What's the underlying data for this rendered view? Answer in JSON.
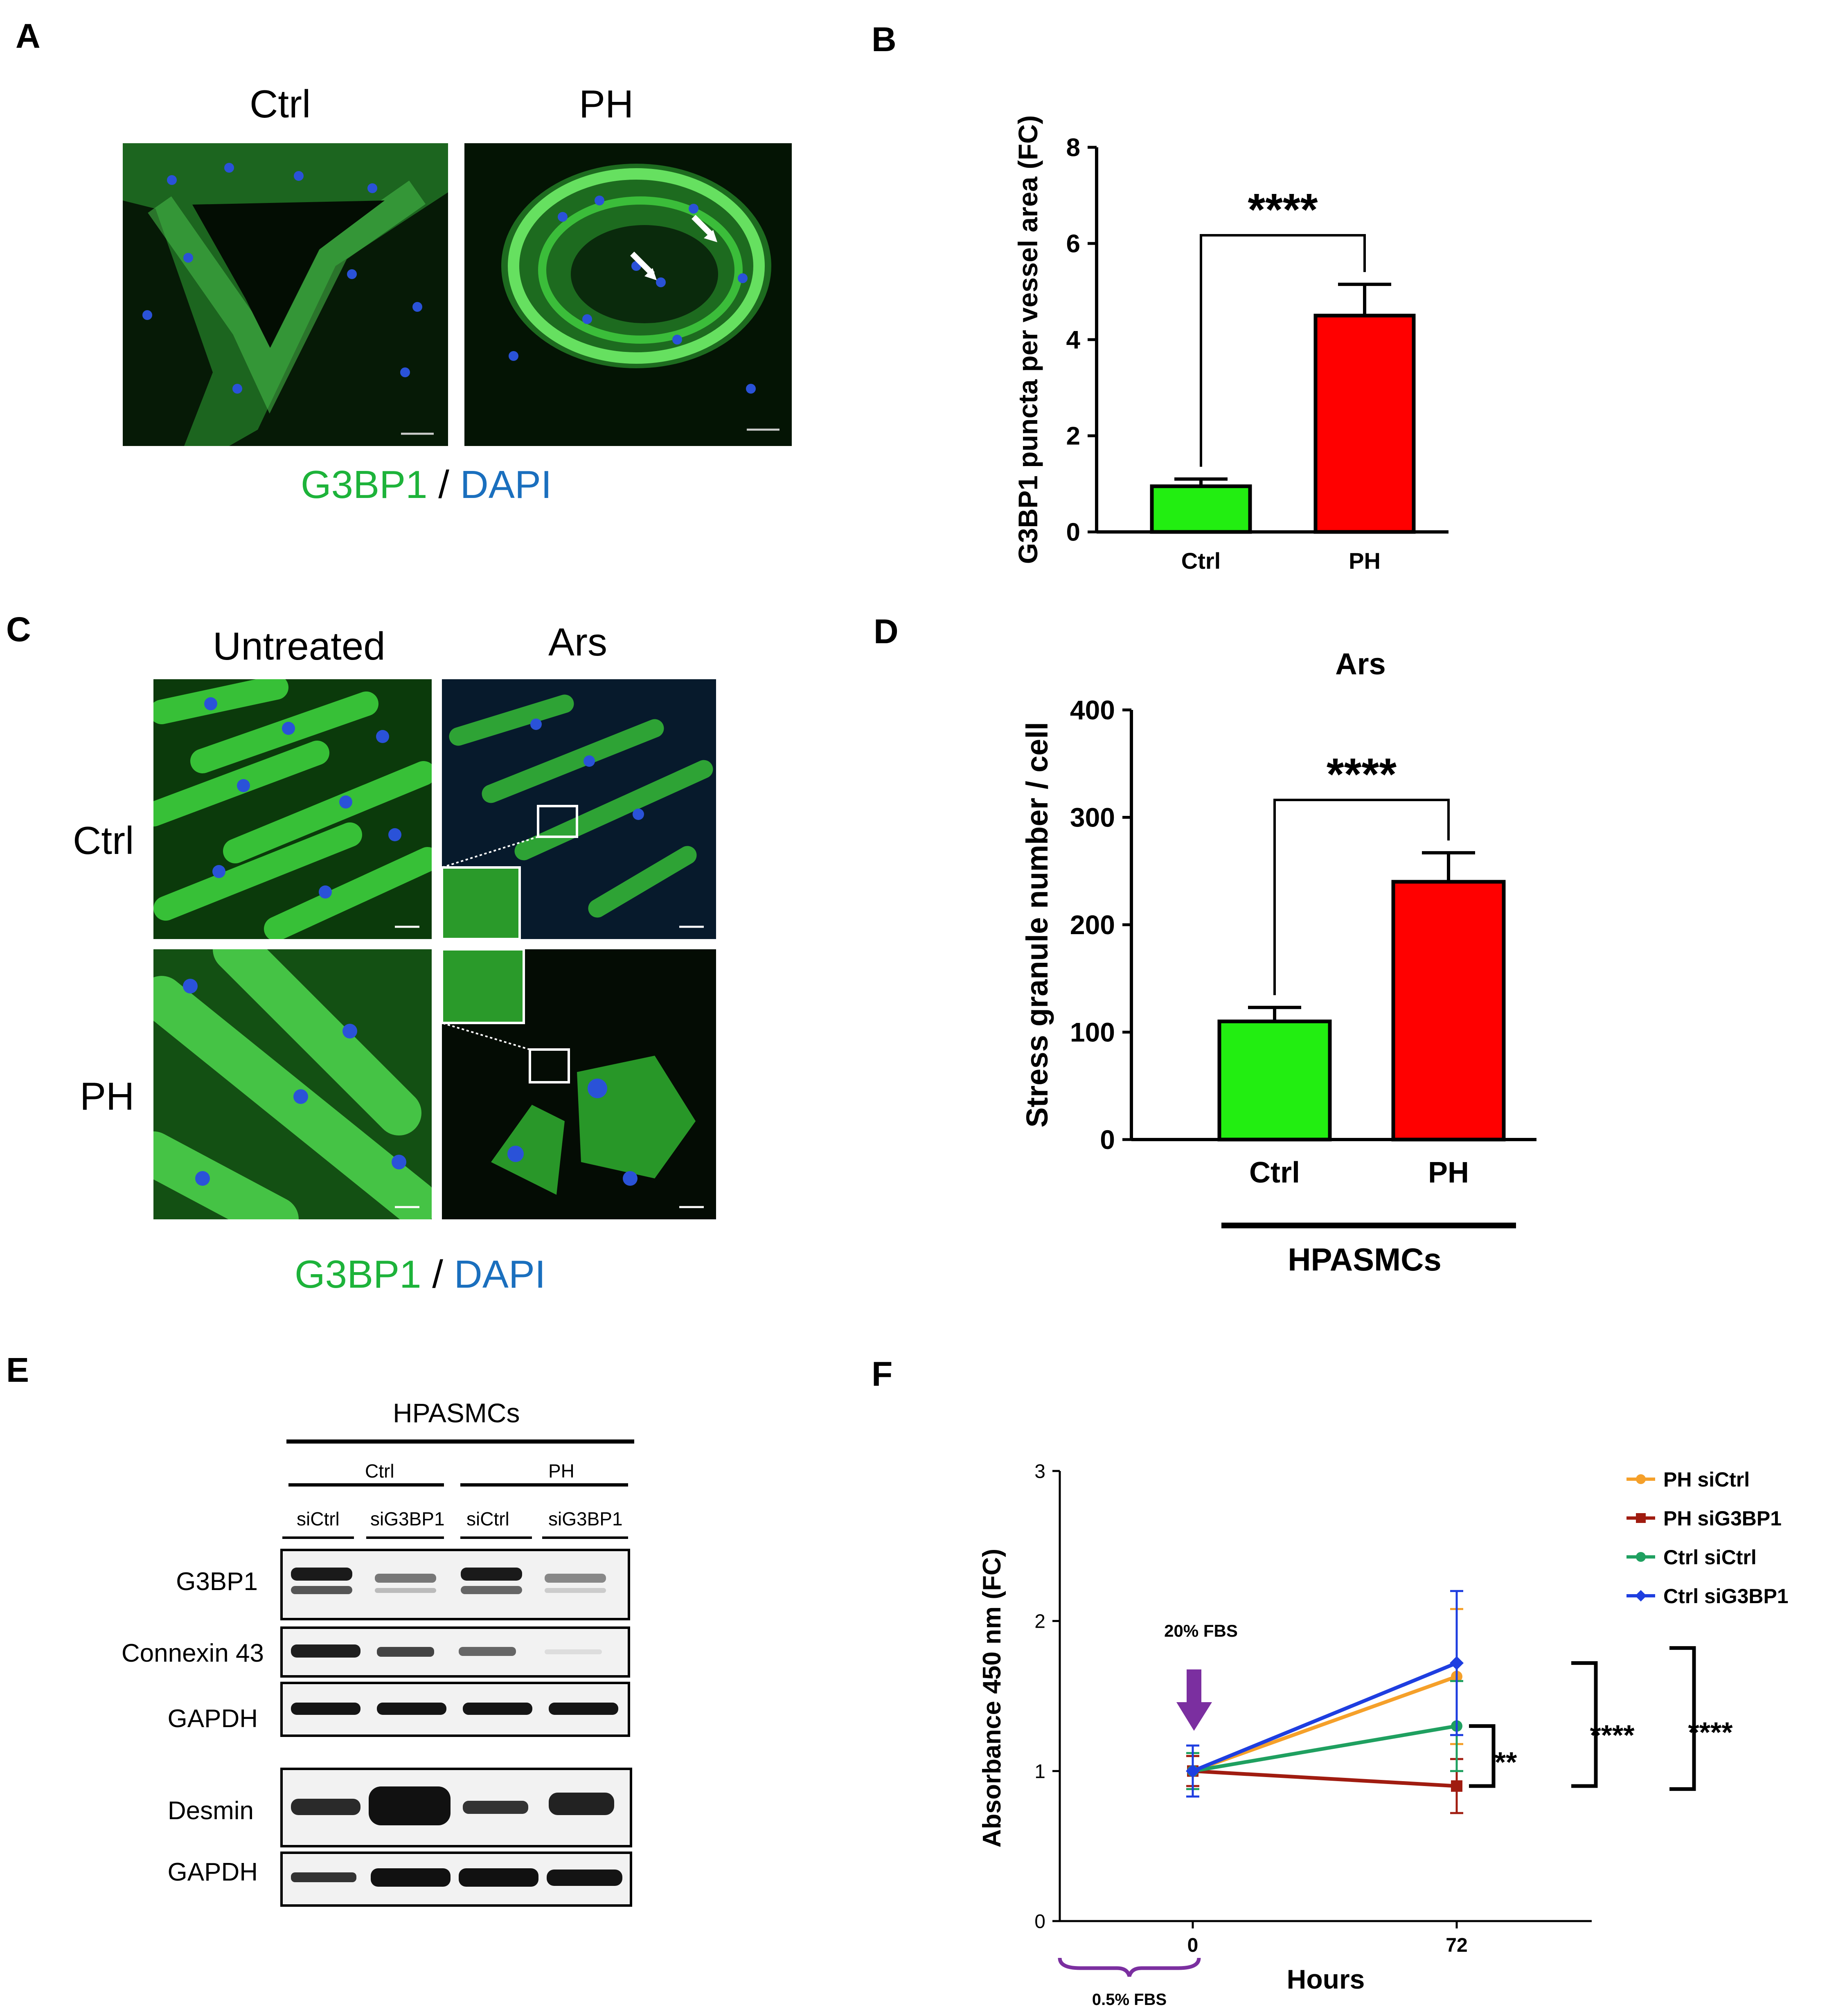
{
  "panels": {
    "A": {
      "letter": "A",
      "col_labels": [
        "Ctrl",
        "PH"
      ],
      "stain": {
        "green": "G3BP1",
        "sep": " / ",
        "blue": "DAPI"
      }
    },
    "B": {
      "letter": "B"
    },
    "C": {
      "letter": "C",
      "col_labels": [
        "Untreated",
        "Ars"
      ],
      "row_labels": [
        "Ctrl",
        "PH"
      ],
      "stain": {
        "green": "G3BP1",
        "sep": " / ",
        "blue": "DAPI"
      }
    },
    "D": {
      "letter": "D",
      "group_label": "HPASMCs"
    },
    "E": {
      "letter": "E",
      "title": "HPASMCs",
      "groups": [
        "Ctrl",
        "PH"
      ],
      "lanes": [
        "siCtrl",
        "siG3BP1",
        "siCtrl",
        "siG3BP1"
      ],
      "rows": [
        "G3BP1",
        "Connexin 43",
        "GAPDH",
        "Desmin",
        "GAPDH"
      ]
    },
    "F": {
      "letter": "F",
      "annotation_top": "20% FBS",
      "annotation_bottom": "0.5% FBS"
    }
  },
  "colors": {
    "ctrl_bar": "#22ee11",
    "ph_bar": "#ff0000",
    "green_stain": "#1db33a",
    "blue_stain": "#1a6fbe",
    "ph_sictrl": "#f5a02a",
    "ph_sig3bp1": "#a01c10",
    "ctrl_sictrl": "#1fa060",
    "ctrl_sig3bp1": "#1e3ee0",
    "fbs_arrow": "#7b2fa0"
  },
  "chart_data": [
    {
      "id": "B",
      "type": "bar",
      "categories": [
        "Ctrl",
        "PH"
      ],
      "values": [
        0.95,
        4.5
      ],
      "errors": [
        0.15,
        0.65
      ],
      "ylabel": "G3BP1 puncta per vessel area (FC)",
      "yticks": [
        "0",
        "2",
        "4",
        "6",
        "8"
      ],
      "ylim": [
        0,
        8
      ],
      "significance": "****"
    },
    {
      "id": "D",
      "type": "bar",
      "title": "Ars",
      "categories": [
        "Ctrl",
        "PH"
      ],
      "values": [
        110,
        240
      ],
      "errors": [
        13,
        27
      ],
      "ylabel": "Stress granule number / cell",
      "yticks": [
        "0",
        "100",
        "200",
        "300",
        "400"
      ],
      "ylim": [
        0,
        400
      ],
      "significance": "****"
    },
    {
      "id": "F",
      "type": "line",
      "x": [
        0,
        72
      ],
      "xticks": [
        "0",
        "72"
      ],
      "xlabel": "Hours",
      "ylabel": "Absorbance 450 nm (FC)",
      "yticks": [
        "0",
        "1",
        "2",
        "3"
      ],
      "ylim": [
        0,
        3
      ],
      "legend_position": "top-right",
      "series": [
        {
          "name": "PH siCtrl",
          "values": [
            1.0,
            1.63
          ],
          "errors": [
            0.1,
            0.45
          ]
        },
        {
          "name": "PH siG3BP1",
          "values": [
            1.0,
            0.9
          ],
          "errors": [
            0.1,
            0.18
          ]
        },
        {
          "name": "Ctrl siCtrl",
          "values": [
            1.0,
            1.3
          ],
          "errors": [
            0.12,
            0.3
          ]
        },
        {
          "name": "Ctrl siG3BP1",
          "values": [
            1.0,
            1.72
          ],
          "errors": [
            0.17,
            0.48
          ]
        }
      ],
      "significance": [
        "**",
        "****",
        "****"
      ]
    }
  ]
}
